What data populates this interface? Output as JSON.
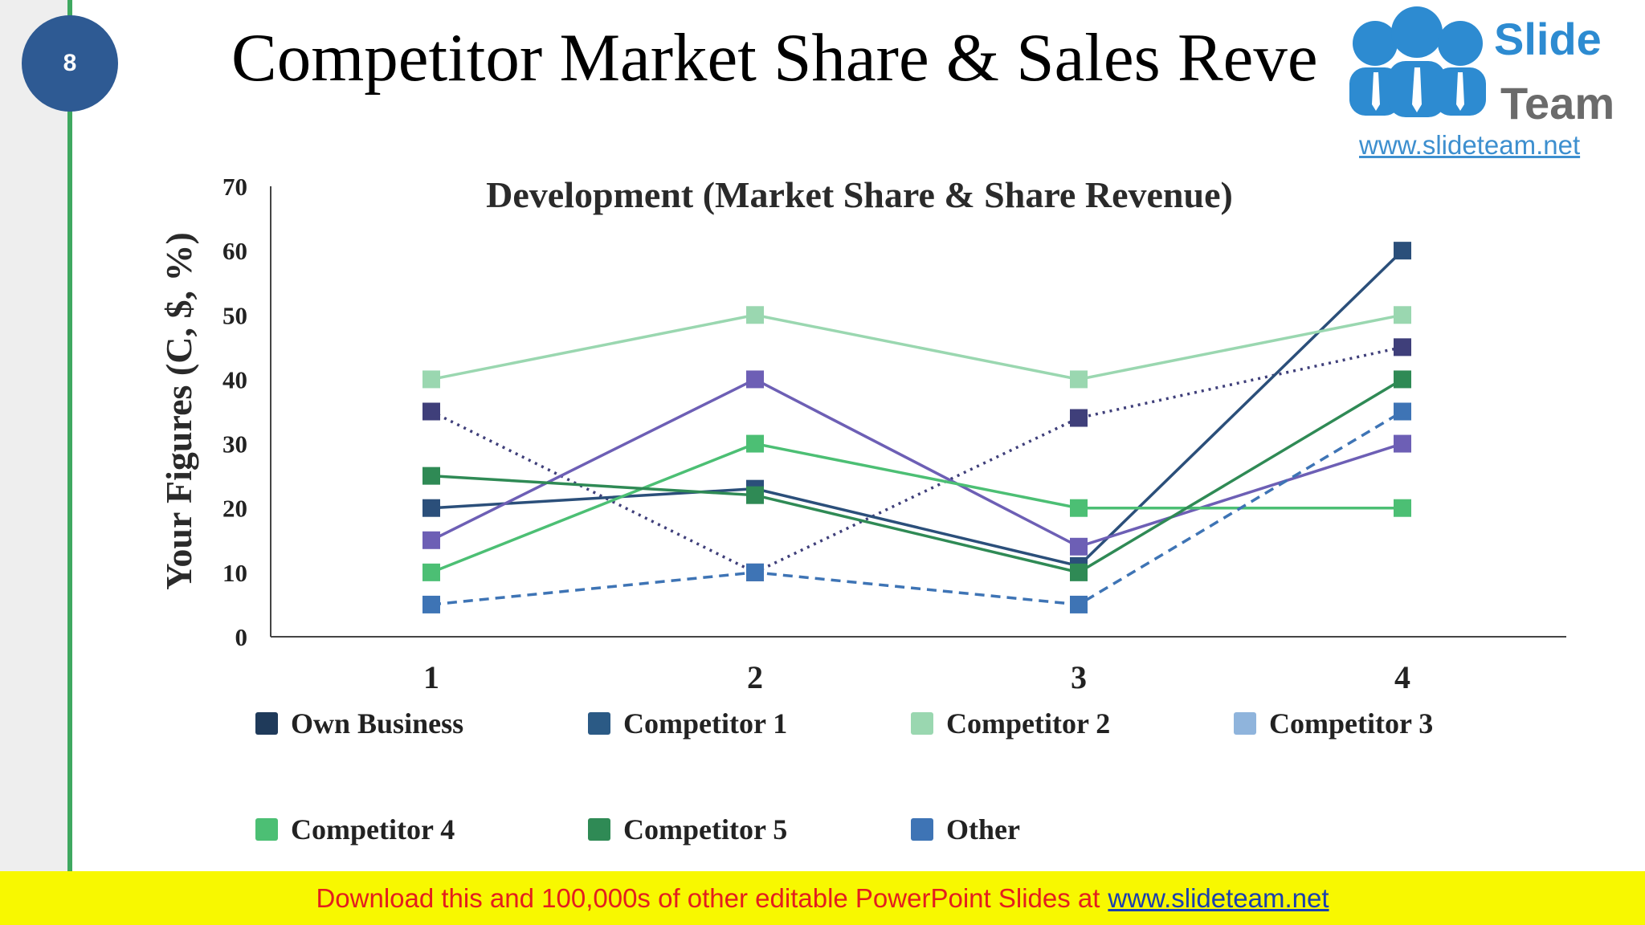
{
  "slide": {
    "number": "8",
    "title": "Competitor Market Share & Sales Revenue"
  },
  "logo": {
    "line1": "Slide",
    "line2": "Team",
    "url": "www.slideteam.net"
  },
  "banner": {
    "text": "Download this and 100,000s of other editable PowerPoint Slides at",
    "link": "www.slideteam.net"
  },
  "colors": {
    "accent_green": "#3fa860",
    "badge_blue": "#2e5a93",
    "banner_yellow": "#f8f800",
    "banner_red": "#e31e1e"
  },
  "chart_data": {
    "type": "line",
    "title": "Development (Market Share & Share Revenue)",
    "xlabel": "",
    "ylabel": "Your Figures (C, $, %)",
    "categories": [
      "1",
      "2",
      "3",
      "4"
    ],
    "ylim": [
      0,
      70
    ],
    "yticks": [
      0,
      10,
      20,
      30,
      40,
      50,
      60,
      70
    ],
    "grid": false,
    "legend_position": "bottom",
    "series": [
      {
        "name": "Own Business",
        "values": [
          35,
          10,
          34,
          45
        ],
        "color": "#3f3f7a",
        "dash": "dotted"
      },
      {
        "name": "Competitor 1",
        "values": [
          20,
          23,
          11,
          60
        ],
        "color": "#2b4f7a",
        "dash": "solid"
      },
      {
        "name": "Competitor 2",
        "values": [
          40,
          50,
          40,
          50
        ],
        "color": "#9ad7b0",
        "dash": "solid"
      },
      {
        "name": "Competitor 3",
        "values": [
          15,
          40,
          14,
          30
        ],
        "color": "#6d5fb5",
        "dash": "solid"
      },
      {
        "name": "Competitor 4",
        "values": [
          10,
          30,
          20,
          20
        ],
        "color": "#4cbf74",
        "dash": "solid"
      },
      {
        "name": "Competitor 5",
        "values": [
          25,
          22,
          10,
          40
        ],
        "color": "#2f8a55",
        "dash": "solid"
      },
      {
        "name": "Other",
        "values": [
          5,
          10,
          5,
          35
        ],
        "color": "#3e74b5",
        "dash": "dashed"
      }
    ],
    "legend": [
      {
        "label": "Own Business",
        "color": "#1f3a5a"
      },
      {
        "label": "Competitor 1",
        "color": "#2b5a85"
      },
      {
        "label": "Competitor 2",
        "color": "#9ad7b0"
      },
      {
        "label": "Competitor 3",
        "color": "#8fb4dc"
      },
      {
        "label": "Competitor 4",
        "color": "#4cbf74"
      },
      {
        "label": "Competitor 5",
        "color": "#2f8a55"
      },
      {
        "label": "Other",
        "color": "#3e74b5"
      }
    ]
  }
}
